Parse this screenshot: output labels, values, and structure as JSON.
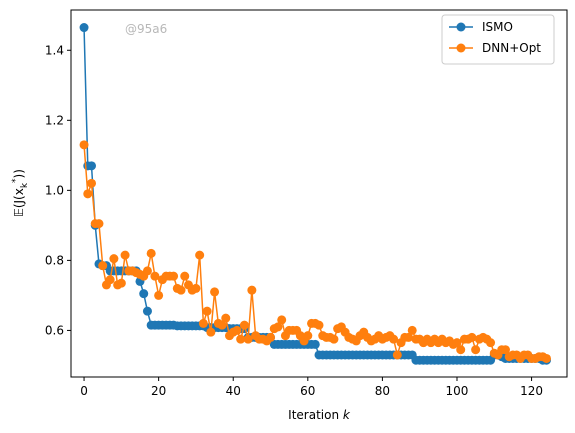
{
  "chart_data": {
    "type": "line",
    "xlabel_prefix": "Iteration ",
    "xlabel_var": "k",
    "ylabel": "𝔼(J(x",
    "ylabel_sub": "k",
    "ylabel_sup": "*",
    "ylabel_end": "))",
    "xlim": [
      -3.5,
      129.5
    ],
    "ylim": [
      0.467,
      1.515
    ],
    "xticks": [
      0,
      20,
      40,
      60,
      80,
      100,
      120
    ],
    "yticks": [
      0.6,
      0.8,
      1.0,
      1.2,
      1.4
    ],
    "ytick_labels": [
      "0.6",
      "0.8",
      "1.0",
      "1.2",
      "1.4"
    ],
    "grid": false,
    "legend_position": "upper right",
    "watermark": "@95a6",
    "series": [
      {
        "name": "ISMO",
        "color": "#1f77b4",
        "x": [
          0,
          1,
          2,
          3,
          4,
          5,
          6,
          7,
          8,
          9,
          10,
          11,
          12,
          13,
          14,
          15,
          16,
          17,
          18,
          19,
          20,
          21,
          22,
          23,
          24,
          25,
          26,
          27,
          28,
          29,
          30,
          31,
          32,
          33,
          34,
          35,
          36,
          37,
          38,
          39,
          40,
          41,
          42,
          43,
          44,
          45,
          46,
          47,
          48,
          49,
          50,
          51,
          52,
          53,
          54,
          55,
          56,
          57,
          58,
          59,
          60,
          61,
          62,
          63,
          64,
          65,
          66,
          67,
          68,
          69,
          70,
          71,
          72,
          73,
          74,
          75,
          76,
          77,
          78,
          79,
          80,
          81,
          82,
          83,
          84,
          85,
          86,
          87,
          88,
          89,
          90,
          91,
          92,
          93,
          94,
          95,
          96,
          97,
          98,
          99,
          100,
          101,
          102,
          103,
          104,
          105,
          106,
          107,
          108,
          109,
          110,
          111,
          112,
          113,
          114,
          115,
          116,
          117,
          118,
          119,
          120,
          121,
          122,
          123,
          124
        ],
        "y": [
          1.465,
          1.07,
          1.07,
          0.9,
          0.79,
          0.785,
          0.785,
          0.77,
          0.77,
          0.77,
          0.77,
          0.77,
          0.77,
          0.77,
          0.77,
          0.74,
          0.705,
          0.655,
          0.615,
          0.615,
          0.615,
          0.615,
          0.615,
          0.615,
          0.615,
          0.613,
          0.613,
          0.613,
          0.613,
          0.613,
          0.613,
          0.613,
          0.613,
          0.608,
          0.608,
          0.608,
          0.608,
          0.608,
          0.608,
          0.605,
          0.605,
          0.605,
          0.605,
          0.605,
          0.58,
          0.58,
          0.58,
          0.58,
          0.58,
          0.58,
          0.58,
          0.56,
          0.56,
          0.56,
          0.56,
          0.56,
          0.56,
          0.56,
          0.56,
          0.56,
          0.56,
          0.56,
          0.56,
          0.53,
          0.53,
          0.53,
          0.53,
          0.53,
          0.53,
          0.53,
          0.53,
          0.53,
          0.53,
          0.53,
          0.53,
          0.53,
          0.53,
          0.53,
          0.53,
          0.53,
          0.53,
          0.53,
          0.53,
          0.53,
          0.53,
          0.53,
          0.53,
          0.53,
          0.53,
          0.515,
          0.515,
          0.515,
          0.515,
          0.515,
          0.515,
          0.515,
          0.515,
          0.515,
          0.515,
          0.515,
          0.515,
          0.515,
          0.515,
          0.515,
          0.515,
          0.515,
          0.515,
          0.515,
          0.515,
          0.515,
          0.53,
          0.53,
          0.525,
          0.52,
          0.52,
          0.52,
          0.52,
          0.52,
          0.52,
          0.52,
          0.52,
          0.52,
          0.52,
          0.515,
          0.515
        ]
      },
      {
        "name": "DNN+Opt",
        "color": "#ff7f0e",
        "x": [
          0,
          1,
          2,
          3,
          4,
          5,
          6,
          7,
          8,
          9,
          10,
          11,
          12,
          13,
          14,
          15,
          16,
          17,
          18,
          19,
          20,
          21,
          22,
          23,
          24,
          25,
          26,
          27,
          28,
          29,
          30,
          31,
          32,
          33,
          34,
          35,
          36,
          37,
          38,
          39,
          40,
          41,
          42,
          43,
          44,
          45,
          46,
          47,
          48,
          49,
          50,
          51,
          52,
          53,
          54,
          55,
          56,
          57,
          58,
          59,
          60,
          61,
          62,
          63,
          64,
          65,
          66,
          67,
          68,
          69,
          70,
          71,
          72,
          73,
          74,
          75,
          76,
          77,
          78,
          79,
          80,
          81,
          82,
          83,
          84,
          85,
          86,
          87,
          88,
          89,
          90,
          91,
          92,
          93,
          94,
          95,
          96,
          97,
          98,
          99,
          100,
          101,
          102,
          103,
          104,
          105,
          106,
          107,
          108,
          109,
          110,
          111,
          112,
          113,
          114,
          115,
          116,
          117,
          118,
          119,
          120,
          121,
          122,
          123,
          124
        ],
        "y": [
          1.13,
          0.99,
          1.02,
          0.905,
          0.905,
          0.785,
          0.73,
          0.745,
          0.805,
          0.73,
          0.735,
          0.815,
          0.77,
          0.77,
          0.765,
          0.76,
          0.755,
          0.77,
          0.82,
          0.755,
          0.7,
          0.745,
          0.755,
          0.755,
          0.755,
          0.72,
          0.715,
          0.755,
          0.73,
          0.715,
          0.72,
          0.815,
          0.62,
          0.655,
          0.595,
          0.71,
          0.62,
          0.615,
          0.635,
          0.585,
          0.595,
          0.6,
          0.575,
          0.615,
          0.575,
          0.715,
          0.585,
          0.575,
          0.575,
          0.57,
          0.58,
          0.605,
          0.61,
          0.63,
          0.585,
          0.6,
          0.6,
          0.6,
          0.585,
          0.57,
          0.585,
          0.62,
          0.62,
          0.615,
          0.585,
          0.58,
          0.58,
          0.575,
          0.605,
          0.61,
          0.595,
          0.58,
          0.575,
          0.57,
          0.585,
          0.595,
          0.58,
          0.57,
          0.575,
          0.585,
          0.575,
          0.58,
          0.585,
          0.575,
          0.53,
          0.565,
          0.58,
          0.58,
          0.6,
          0.575,
          0.575,
          0.565,
          0.575,
          0.565,
          0.575,
          0.565,
          0.575,
          0.565,
          0.57,
          0.56,
          0.565,
          0.545,
          0.575,
          0.575,
          0.58,
          0.545,
          0.575,
          0.58,
          0.575,
          0.565,
          0.535,
          0.53,
          0.545,
          0.545,
          0.525,
          0.53,
          0.53,
          0.52,
          0.53,
          0.53,
          0.52,
          0.52,
          0.525,
          0.525,
          0.52
        ]
      }
    ]
  }
}
